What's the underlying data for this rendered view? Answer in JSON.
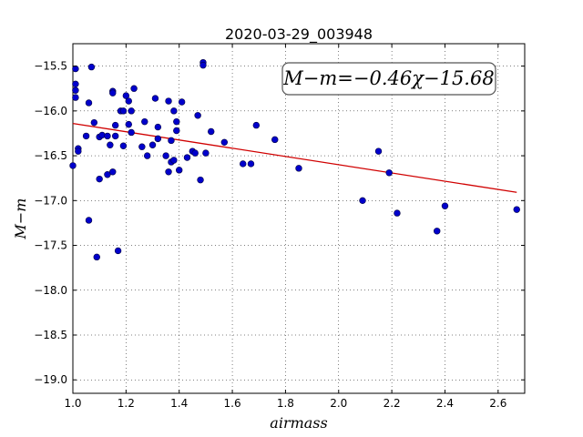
{
  "chart_data": {
    "type": "scatter",
    "title": "2020-03-29_003948",
    "xlabel": "airmass",
    "ylabel": "M−m",
    "xlim": [
      1.0,
      2.7
    ],
    "ylim": [
      -19.15,
      -15.25
    ],
    "y_inverted": true,
    "grid": true,
    "xticks": [
      1.0,
      1.2,
      1.4,
      1.6,
      1.8,
      2.0,
      2.2,
      2.4,
      2.6
    ],
    "xtick_labels": [
      "1.0",
      "1.2",
      "1.4",
      "1.6",
      "1.8",
      "2.0",
      "2.2",
      "2.4",
      "2.6"
    ],
    "yticks": [
      -15.5,
      -16.0,
      -16.5,
      -17.0,
      -17.5,
      -18.0,
      -18.5,
      -19.0
    ],
    "ytick_labels": [
      "−15.5",
      "−16.0",
      "−16.5",
      "−17.0",
      "−17.5",
      "−18.0",
      "−18.5",
      "−19.0"
    ],
    "annotation": "M−m=−0.46χ−15.68",
    "fit": {
      "slope": -0.46,
      "intercept": -15.68,
      "x_range": [
        1.0,
        2.67
      ],
      "color": "#d00000"
    },
    "marker_color": "#0000cc",
    "points": [
      {
        "x": 1.0,
        "y": -16.61
      },
      {
        "x": 1.01,
        "y": -15.53
      },
      {
        "x": 1.01,
        "y": -15.77
      },
      {
        "x": 1.01,
        "y": -15.7
      },
      {
        "x": 1.01,
        "y": -15.85
      },
      {
        "x": 1.02,
        "y": -16.42
      },
      {
        "x": 1.02,
        "y": -16.45
      },
      {
        "x": 1.05,
        "y": -16.28
      },
      {
        "x": 1.06,
        "y": -15.91
      },
      {
        "x": 1.06,
        "y": -17.22
      },
      {
        "x": 1.07,
        "y": -15.51
      },
      {
        "x": 1.08,
        "y": -16.13
      },
      {
        "x": 1.09,
        "y": -17.63
      },
      {
        "x": 1.1,
        "y": -16.29
      },
      {
        "x": 1.1,
        "y": -16.76
      },
      {
        "x": 1.11,
        "y": -16.27
      },
      {
        "x": 1.13,
        "y": -16.71
      },
      {
        "x": 1.13,
        "y": -16.28
      },
      {
        "x": 1.14,
        "y": -16.38
      },
      {
        "x": 1.15,
        "y": -15.78
      },
      {
        "x": 1.15,
        "y": -15.8
      },
      {
        "x": 1.15,
        "y": -16.68
      },
      {
        "x": 1.16,
        "y": -16.28
      },
      {
        "x": 1.16,
        "y": -16.16
      },
      {
        "x": 1.17,
        "y": -17.56
      },
      {
        "x": 1.18,
        "y": -16.0
      },
      {
        "x": 1.19,
        "y": -16.39
      },
      {
        "x": 1.19,
        "y": -16.0
      },
      {
        "x": 1.2,
        "y": -15.83
      },
      {
        "x": 1.21,
        "y": -15.89
      },
      {
        "x": 1.21,
        "y": -16.15
      },
      {
        "x": 1.22,
        "y": -16.0
      },
      {
        "x": 1.22,
        "y": -16.24
      },
      {
        "x": 1.23,
        "y": -15.75
      },
      {
        "x": 1.26,
        "y": -16.4
      },
      {
        "x": 1.27,
        "y": -16.12
      },
      {
        "x": 1.28,
        "y": -16.5
      },
      {
        "x": 1.3,
        "y": -16.38
      },
      {
        "x": 1.31,
        "y": -15.86
      },
      {
        "x": 1.32,
        "y": -16.18
      },
      {
        "x": 1.32,
        "y": -16.31
      },
      {
        "x": 1.35,
        "y": -16.5
      },
      {
        "x": 1.36,
        "y": -16.68
      },
      {
        "x": 1.36,
        "y": -15.89
      },
      {
        "x": 1.37,
        "y": -16.57
      },
      {
        "x": 1.37,
        "y": -16.33
      },
      {
        "x": 1.38,
        "y": -16.0
      },
      {
        "x": 1.38,
        "y": -16.55
      },
      {
        "x": 1.39,
        "y": -16.12
      },
      {
        "x": 1.39,
        "y": -16.22
      },
      {
        "x": 1.4,
        "y": -16.66
      },
      {
        "x": 1.41,
        "y": -15.9
      },
      {
        "x": 1.43,
        "y": -16.52
      },
      {
        "x": 1.45,
        "y": -16.45
      },
      {
        "x": 1.46,
        "y": -16.47
      },
      {
        "x": 1.47,
        "y": -16.05
      },
      {
        "x": 1.48,
        "y": -16.77
      },
      {
        "x": 1.49,
        "y": -15.46
      },
      {
        "x": 1.49,
        "y": -15.49
      },
      {
        "x": 1.5,
        "y": -16.47
      },
      {
        "x": 1.52,
        "y": -16.23
      },
      {
        "x": 1.57,
        "y": -16.35
      },
      {
        "x": 1.64,
        "y": -16.59
      },
      {
        "x": 1.67,
        "y": -16.59
      },
      {
        "x": 1.69,
        "y": -16.16
      },
      {
        "x": 1.76,
        "y": -16.32
      },
      {
        "x": 1.85,
        "y": -16.64
      },
      {
        "x": 2.09,
        "y": -17.0
      },
      {
        "x": 2.15,
        "y": -16.45
      },
      {
        "x": 2.19,
        "y": -16.69
      },
      {
        "x": 2.22,
        "y": -17.14
      },
      {
        "x": 2.37,
        "y": -17.34
      },
      {
        "x": 2.4,
        "y": -17.06
      },
      {
        "x": 2.67,
        "y": -17.1
      }
    ]
  }
}
